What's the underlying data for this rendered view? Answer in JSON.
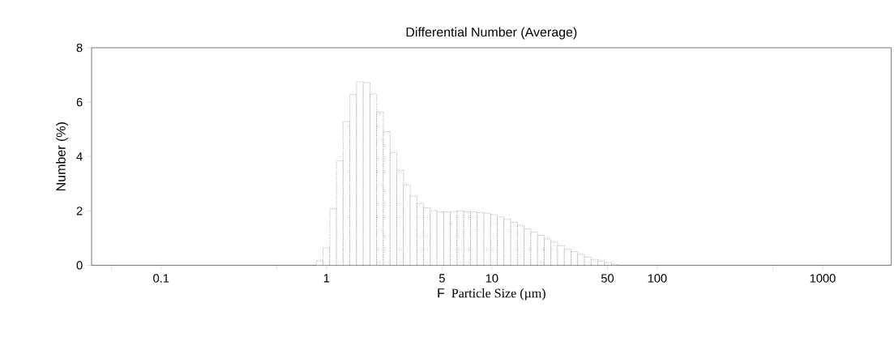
{
  "chart_data": {
    "type": "histogram",
    "title": "Differential Number (Average)",
    "xlabel": "Particle Size (µm)",
    "ylabel": "Number (%)",
    "annotations": [
      "F"
    ],
    "bins": [
      0.868,
      0.953,
      1.047,
      1.149,
      1.261,
      1.385,
      1.52,
      1.669,
      1.832,
      2.011,
      2.208,
      2.424,
      2.661,
      2.921,
      3.207,
      3.521,
      3.865,
      4.243,
      4.659,
      5.114,
      5.615,
      6.163,
      6.767,
      7.428,
      8.155,
      8.953,
      9.828,
      10.79,
      11.84,
      13.0,
      14.27,
      15.67,
      17.2,
      18.88,
      20.73,
      22.76,
      24.98,
      27.43,
      30.11,
      33.05,
      36.29,
      39.84,
      43.73,
      48.01,
      52.71,
      57.86
    ],
    "values": [
      0.17,
      0.64,
      2.08,
      3.85,
      5.29,
      6.28,
      6.75,
      6.72,
      6.3,
      5.64,
      4.92,
      4.15,
      3.5,
      2.96,
      2.54,
      2.28,
      2.11,
      2.01,
      1.96,
      1.96,
      1.98,
      2.0,
      1.97,
      1.97,
      1.94,
      1.91,
      1.86,
      1.78,
      1.69,
      1.58,
      1.47,
      1.34,
      1.22,
      1.1,
      0.97,
      0.85,
      0.72,
      0.6,
      0.5,
      0.4,
      0.3,
      0.22,
      0.15,
      0.1,
      0.04
    ],
    "color": "#000000",
    "log": "x",
    "xlim": [
      0.038,
      2600
    ],
    "xticks": [
      {
        "value": 0.05,
        "label": null
      },
      0.1,
      {
        "value": 0.5,
        "label": null
      },
      1,
      5,
      10,
      50,
      100,
      {
        "value": 500,
        "label": null
      },
      1000
    ],
    "ylim": [
      0,
      8
    ],
    "yticks": [
      0,
      2,
      4,
      6,
      8
    ],
    "line_style": "dotted"
  }
}
